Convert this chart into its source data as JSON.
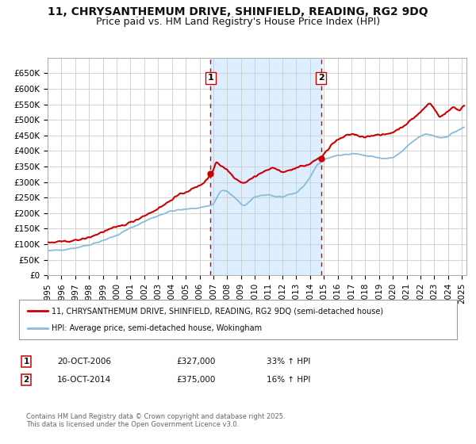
{
  "title_line1": "11, CHRYSANTHEMUM DRIVE, SHINFIELD, READING, RG2 9DQ",
  "title_line2": "Price paid vs. HM Land Registry's House Price Index (HPI)",
  "legend_label_red": "11, CHRYSANTHEMUM DRIVE, SHINFIELD, READING, RG2 9DQ (semi-detached house)",
  "legend_label_blue": "HPI: Average price, semi-detached house, Wokingham",
  "purchase1_label": "1",
  "purchase1_date": "20-OCT-2006",
  "purchase1_price": "£327,000",
  "purchase1_pct": "33% ↑ HPI",
  "purchase2_label": "2",
  "purchase2_date": "16-OCT-2014",
  "purchase2_price": "£375,000",
  "purchase2_pct": "16% ↑ HPI",
  "copyright_text": "Contains HM Land Registry data © Crown copyright and database right 2025.\nThis data is licensed under the Open Government Licence v3.0.",
  "red_color": "#cc0000",
  "blue_color": "#88bbdd",
  "shade_color": "#ddeeff",
  "vline_color": "#cc0000",
  "grid_color": "#cccccc",
  "bg_color": "#ffffff",
  "ylim_max": 700000,
  "ylim_min": 0,
  "title_fontsize": 10,
  "subtitle_fontsize": 9
}
